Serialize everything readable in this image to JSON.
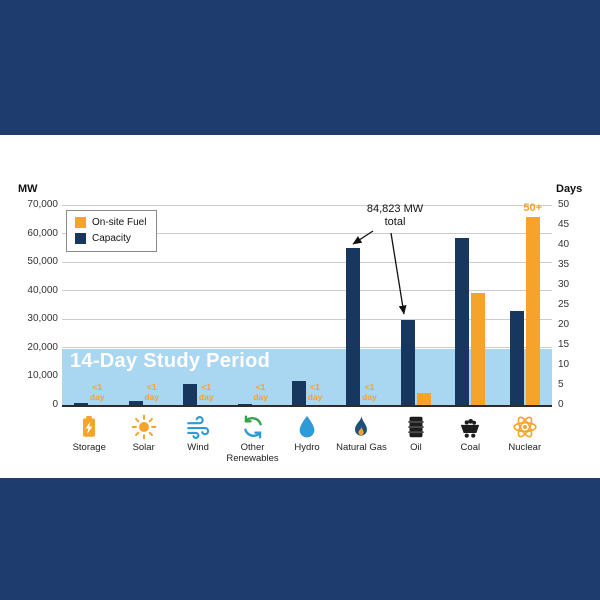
{
  "colors": {
    "background": "#1F3C6E",
    "capacity_bar": "#17375E",
    "onsite_fuel_bar": "#F5A32B",
    "study_band": "#A9D6F0"
  },
  "chart_data": {
    "type": "bar",
    "title": "",
    "left_axis": {
      "label": "MW",
      "min": 0,
      "max": 70000,
      "step": 10000,
      "ticks": [
        "0",
        "10,000",
        "20,000",
        "30,000",
        "40,000",
        "50,000",
        "60,000",
        "70,000"
      ]
    },
    "right_axis": {
      "label": "Days",
      "min": 0,
      "max": 50,
      "step": 5,
      "ticks": [
        "0",
        "5",
        "10",
        "15",
        "20",
        "25",
        "30",
        "35",
        "40",
        "45",
        "50"
      ]
    },
    "legend": [
      {
        "label": "On-site Fuel",
        "color": "#F5A32B"
      },
      {
        "label": "Capacity",
        "color": "#17375E"
      }
    ],
    "band": {
      "label": "14-Day Study Period",
      "from_days": 0,
      "to_days": 14
    },
    "annotation": {
      "text": "84,823 MW\ntotal",
      "targets": [
        "Natural Gas",
        "Oil"
      ]
    },
    "categories": [
      {
        "label": "Storage",
        "icon": "battery-icon",
        "capacity_mw": 700,
        "onsite_days": 0,
        "onsite_label": "<1\nday"
      },
      {
        "label": "Solar",
        "icon": "sun-icon",
        "capacity_mw": 1500,
        "onsite_days": 0,
        "onsite_label": "<1\nday"
      },
      {
        "label": "Wind",
        "icon": "wind-icon",
        "capacity_mw": 7500,
        "onsite_days": 0,
        "onsite_label": "<1\nday"
      },
      {
        "label": "Other Renewables",
        "icon": "recycle-icon",
        "capacity_mw": 500,
        "onsite_days": 0,
        "onsite_label": "<1\nday"
      },
      {
        "label": "Hydro",
        "icon": "water-drop-icon",
        "capacity_mw": 8500,
        "onsite_days": 0,
        "onsite_label": "<1\nday"
      },
      {
        "label": "Natural Gas",
        "icon": "flame-icon",
        "capacity_mw": 55000,
        "onsite_days": 0,
        "onsite_label": "<1\nday"
      },
      {
        "label": "Oil",
        "icon": "oil-barrel-icon",
        "capacity_mw": 29823,
        "onsite_days": 3,
        "onsite_label": null
      },
      {
        "label": "Coal",
        "icon": "coal-cart-icon",
        "capacity_mw": 58500,
        "onsite_days": 28,
        "onsite_label": null
      },
      {
        "label": "Nuclear",
        "icon": "atom-icon",
        "capacity_mw": 33000,
        "onsite_days": 47,
        "onsite_label": "50+"
      }
    ]
  }
}
